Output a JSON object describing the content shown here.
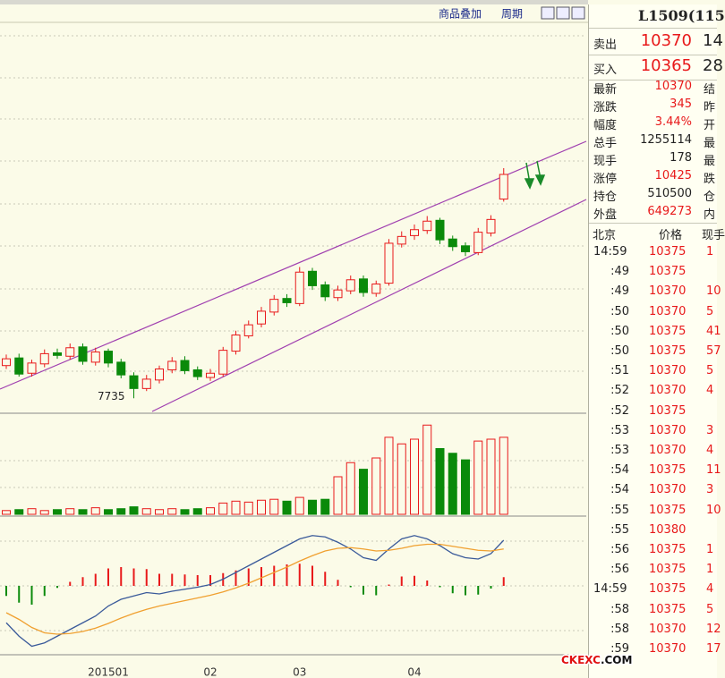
{
  "header": {
    "overlay": "商品叠加",
    "period": "周期"
  },
  "quote": {
    "title": "L1509(115",
    "sell": {
      "label": "卖出",
      "price": "10370",
      "extra": "14"
    },
    "buy": {
      "label": "买入",
      "price": "10365",
      "extra": "28"
    },
    "stats": [
      {
        "label": "最新",
        "value": "10370",
        "next": "结",
        "color": "#e8191a"
      },
      {
        "label": "涨跌",
        "value": "345",
        "next": "昨",
        "color": "#e8191a"
      },
      {
        "label": "幅度",
        "value": "3.44%",
        "next": "开",
        "color": "#e8191a"
      },
      {
        "label": "总手",
        "value": "1255114",
        "next": "最",
        "color": "#222222"
      },
      {
        "label": "现手",
        "value": "178",
        "next": "最",
        "color": "#222222"
      },
      {
        "label": "涨停",
        "value": "10425",
        "next": "跌",
        "color": "#e8191a"
      },
      {
        "label": "持仓",
        "value": "510500",
        "next": "仓",
        "color": "#222222"
      },
      {
        "label": "外盘",
        "value": "649273",
        "next": "内",
        "color": "#e8191a"
      }
    ],
    "ticks": {
      "header": [
        "北京",
        "价格",
        "现手"
      ],
      "rows": [
        [
          "14:59",
          "10375",
          "1"
        ],
        [
          ":49",
          "10375",
          ""
        ],
        [
          ":49",
          "10370",
          "10"
        ],
        [
          ":50",
          "10370",
          "5"
        ],
        [
          ":50",
          "10375",
          "41"
        ],
        [
          ":50",
          "10375",
          "57"
        ],
        [
          ":51",
          "10370",
          "5"
        ],
        [
          ":52",
          "10370",
          "4"
        ],
        [
          ":52",
          "10375",
          ""
        ],
        [
          ":53",
          "10370",
          "3"
        ],
        [
          ":53",
          "10370",
          "4"
        ],
        [
          ":54",
          "10375",
          "11"
        ],
        [
          ":54",
          "10370",
          "3"
        ],
        [
          ":55",
          "10375",
          "10"
        ],
        [
          ":55",
          "10380",
          ""
        ],
        [
          ":56",
          "10375",
          "1"
        ],
        [
          ":56",
          "10375",
          "1"
        ],
        [
          "14:59",
          "10375",
          "4"
        ],
        [
          ":58",
          "10375",
          "5"
        ],
        [
          ":58",
          "10370",
          "12"
        ],
        [
          ":59",
          "10370",
          "17"
        ]
      ]
    }
  },
  "watermark": [
    "CKEXC",
    ".COM"
  ],
  "chart_data": [
    {
      "type": "candlestick",
      "up_color": "#e8191a",
      "down_color": "#0a8a0a",
      "categories": [
        null,
        null,
        null,
        null,
        null,
        null,
        null,
        null,
        "201501",
        null,
        null,
        null,
        null,
        null,
        null,
        null,
        "02",
        null,
        null,
        null,
        null,
        null,
        null,
        "03",
        null,
        null,
        null,
        null,
        null,
        null,
        null,
        null,
        "04",
        null,
        null,
        null,
        null,
        null,
        null,
        null
      ],
      "open": [
        8120,
        8210,
        8030,
        8140,
        8270,
        8230,
        8340,
        8160,
        8290,
        8160,
        8000,
        7850,
        7950,
        8070,
        8180,
        8070,
        7980,
        8020,
        8290,
        8470,
        8610,
        8750,
        8910,
        8850,
        9230,
        9070,
        8920,
        9000,
        9140,
        8970,
        9090,
        9550,
        9650,
        9710,
        9830,
        9610,
        9530,
        9450,
        9680,
        10080
      ],
      "high": [
        8250,
        8260,
        8190,
        8310,
        8320,
        8380,
        8380,
        8330,
        8320,
        8200,
        8040,
        8010,
        8120,
        8220,
        8230,
        8110,
        8080,
        8340,
        8530,
        8650,
        8810,
        8950,
        8960,
        9280,
        9270,
        9110,
        9060,
        9180,
        9180,
        9120,
        9610,
        9700,
        9780,
        9880,
        9860,
        9650,
        9570,
        9740,
        9890,
        10444
      ],
      "low": [
        8080,
        7990,
        7990,
        8100,
        8200,
        8190,
        8130,
        8120,
        8100,
        7970,
        7735,
        7820,
        7910,
        8030,
        8020,
        7950,
        7940,
        7990,
        8250,
        8440,
        8570,
        8710,
        8810,
        8820,
        9010,
        8880,
        8880,
        8960,
        8930,
        8930,
        9060,
        9510,
        9600,
        9670,
        9550,
        9470,
        9410,
        9420,
        9640,
        10050
      ],
      "close": [
        8200,
        8020,
        8150,
        8260,
        8240,
        8330,
        8170,
        8280,
        8150,
        8010,
        7850,
        7960,
        8080,
        8170,
        8060,
        7990,
        8030,
        8300,
        8480,
        8600,
        8760,
        8900,
        8860,
        9220,
        9060,
        8930,
        9010,
        9130,
        8980,
        9080,
        9560,
        9640,
        9720,
        9820,
        9600,
        9520,
        9460,
        9690,
        9840,
        10370
      ],
      "ylim": [
        7580,
        12160
      ],
      "annotations": [
        "7735"
      ]
    },
    {
      "type": "bar",
      "values": [
        4,
        5,
        6,
        4,
        5,
        6,
        5,
        7,
        5,
        6,
        8,
        6,
        5,
        6,
        5,
        6,
        7,
        12,
        14,
        13,
        15,
        16,
        14,
        18,
        15,
        16,
        40,
        55,
        48,
        60,
        82,
        75,
        80,
        95,
        70,
        65,
        58,
        78,
        80,
        82
      ],
      "ylim": [
        0,
        100
      ]
    },
    {
      "type": "macd",
      "ylim": [
        -100,
        100
      ],
      "series": [
        {
          "color": "#3a5a9a",
          "values": [
            -55,
            -75,
            -90,
            -85,
            -75,
            -65,
            -55,
            -45,
            -30,
            -20,
            -15,
            -10,
            -12,
            -8,
            -5,
            -2,
            2,
            10,
            20,
            30,
            40,
            50,
            60,
            70,
            75,
            73,
            65,
            55,
            42,
            38,
            55,
            70,
            75,
            70,
            60,
            48,
            42,
            40,
            48,
            68
          ]
        },
        {
          "color": "#f0a030",
          "values": [
            -40,
            -50,
            -62,
            -70,
            -72,
            -71,
            -68,
            -63,
            -56,
            -48,
            -41,
            -35,
            -30,
            -26,
            -22,
            -18,
            -14,
            -9,
            -3,
            4,
            12,
            20,
            28,
            37,
            45,
            52,
            56,
            57,
            55,
            52,
            53,
            56,
            60,
            62,
            62,
            59,
            56,
            53,
            52,
            55
          ]
        }
      ],
      "histogram": {
        "up_color": "#e8191a",
        "down_color": "#0a8a0a",
        "values": [
          -15,
          -25,
          -28,
          -15,
          -3,
          6,
          13,
          18,
          26,
          28,
          26,
          25,
          18,
          18,
          17,
          16,
          16,
          19,
          23,
          26,
          28,
          30,
          32,
          33,
          30,
          21,
          9,
          -2,
          -13,
          -14,
          2,
          14,
          15,
          8,
          -2,
          -11,
          -14,
          -13,
          -4,
          13
        ]
      }
    }
  ]
}
